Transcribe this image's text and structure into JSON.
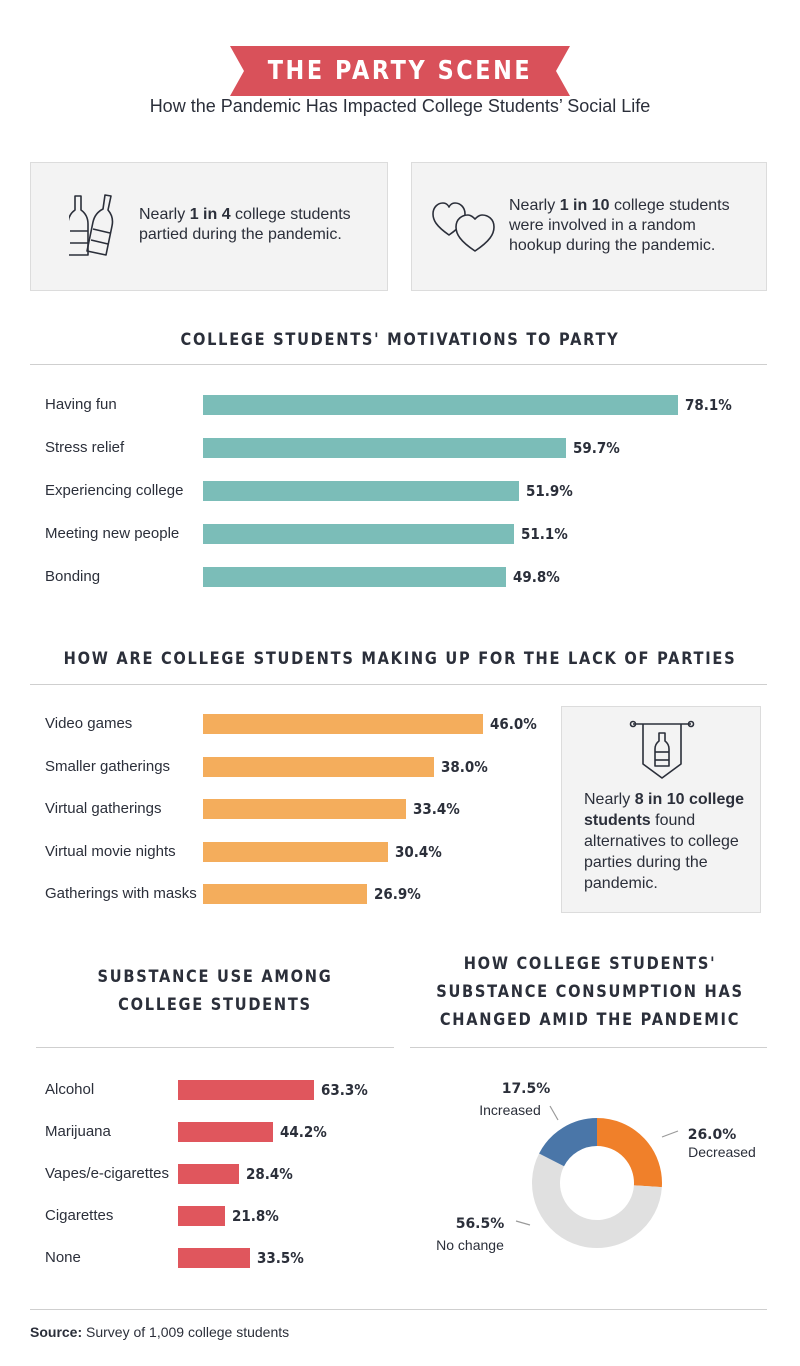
{
  "header": {
    "title": "THE PARTY SCENE",
    "subtitle": "How the Pandemic Has Impacted College Students’ Social Life",
    "banner_color": "#d9515a"
  },
  "stats": [
    {
      "pre": "Nearly ",
      "bold": "1 in 4",
      "post": " college students partied during the pandemic.",
      "icon": "bottles-icon"
    },
    {
      "pre": "Nearly ",
      "bold": "1 in 10",
      "post": " college students were involved in a random hookup during the pandemic.",
      "icon": "hearts-icon"
    }
  ],
  "callout": {
    "pre": "Nearly ",
    "bold": "8 in 10 college students",
    "post": " found alternatives to college parties during the pandemic.",
    "icon": "bottle-banner-icon"
  },
  "source": {
    "label": "Source:",
    "text": " Survey of 1,009 college students"
  },
  "chart_data": [
    {
      "type": "bar",
      "orientation": "horizontal",
      "title": "COLLEGE STUDENTS' MOTIVATIONS TO PARTY",
      "categories": [
        "Having fun",
        "Stress relief",
        "Experiencing college",
        "Meeting new people",
        "Bonding"
      ],
      "values": [
        78.1,
        59.7,
        51.9,
        51.1,
        49.8
      ],
      "value_labels": [
        "78.1%",
        "59.7%",
        "51.9%",
        "51.1%",
        "49.8%"
      ],
      "unit": "%",
      "color": "#7bbdb8"
    },
    {
      "type": "bar",
      "orientation": "horizontal",
      "title": "HOW ARE COLLEGE STUDENTS MAKING UP FOR THE LACK OF PARTIES",
      "categories": [
        "Video games",
        "Smaller gatherings",
        "Virtual gatherings",
        "Virtual movie nights",
        "Gatherings with masks"
      ],
      "values": [
        46.0,
        38.0,
        33.4,
        30.4,
        26.9
      ],
      "value_labels": [
        "46.0%",
        "38.0%",
        "33.4%",
        "30.4%",
        "26.9%"
      ],
      "unit": "%",
      "color": "#f4ad5c"
    },
    {
      "type": "bar",
      "orientation": "horizontal",
      "title": "SUBSTANCE USE AMONG COLLEGE STUDENTS",
      "categories": [
        "Alcohol",
        "Marijuana",
        "Vapes/e-cigarettes",
        "Cigarettes",
        "None"
      ],
      "values": [
        63.3,
        44.2,
        28.4,
        21.8,
        33.5
      ],
      "value_labels": [
        "63.3%",
        "44.2%",
        "28.4%",
        "21.8%",
        "33.5%"
      ],
      "unit": "%",
      "color": "#e0565d"
    },
    {
      "type": "pie",
      "variant": "donut",
      "title": "HOW COLLEGE STUDENTS' SUBSTANCE CONSUMPTION HAS CHANGED AMID THE PANDEMIC",
      "slices": [
        {
          "label": "Decreased",
          "value": 26.0,
          "value_label": "26.0%",
          "color": "#f0802a"
        },
        {
          "label": "No change",
          "value": 56.5,
          "value_label": "56.5%",
          "color": "#e0e0e0"
        },
        {
          "label": "Increased",
          "value": 17.5,
          "value_label": "17.5%",
          "color": "#4a76a8"
        }
      ]
    }
  ]
}
